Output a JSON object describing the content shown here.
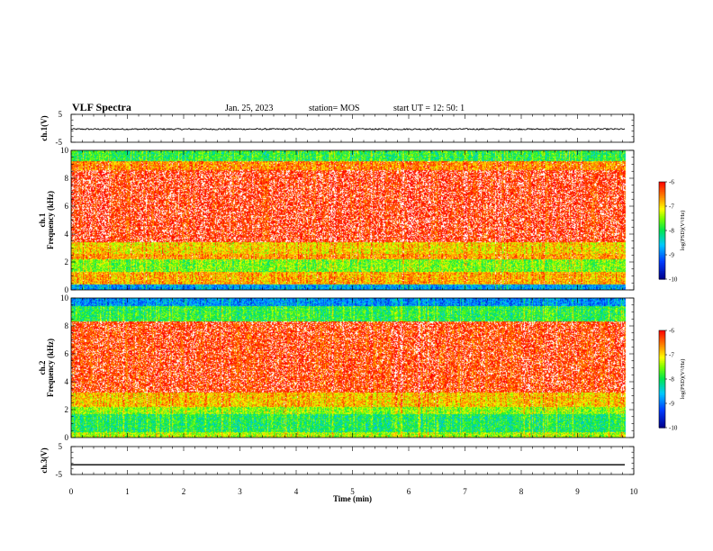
{
  "header": {
    "title": "VLF Spectra",
    "date": "Jan. 25, 2023",
    "station": "station= MOS",
    "start": "start  UT =   12: 50: 1"
  },
  "chart_data": [
    {
      "type": "line",
      "ylabel": "ch.1(V)",
      "ylim": [
        -5,
        5
      ],
      "yticks": [
        "5",
        "-5"
      ],
      "xlim": [
        0,
        10
      ],
      "trace_level": -0.3,
      "trace_noise": 0.25,
      "trace_end": 9.85
    },
    {
      "type": "heatmap",
      "ylabel": "ch.1",
      "ylabel2": "Frequency (kHz)",
      "ylim": [
        0,
        10
      ],
      "yticks": [
        "0",
        "2",
        "4",
        "6",
        "8",
        "10"
      ],
      "xlim": [
        0,
        10
      ],
      "data_end": 9.85,
      "colorbar": {
        "label": "log(PSD)(V²/Hz)",
        "range": [
          -10,
          -6
        ],
        "ticks": [
          "-6",
          "-7",
          "-8",
          "-9",
          "-10"
        ]
      },
      "bands_khz": [
        {
          "from": 9.2,
          "to": 10.0,
          "level": -7.9
        },
        {
          "from": 8.6,
          "to": 9.2,
          "level": -6.6
        },
        {
          "from": 3.4,
          "to": 8.6,
          "level": -6.1
        },
        {
          "from": 2.6,
          "to": 3.4,
          "level": -7.0
        },
        {
          "from": 2.2,
          "to": 2.6,
          "level": -6.7
        },
        {
          "from": 1.3,
          "to": 2.2,
          "level": -7.6
        },
        {
          "from": 0.4,
          "to": 1.3,
          "level": -6.8
        },
        {
          "from": 0.0,
          "to": 0.4,
          "level": -8.8
        }
      ]
    },
    {
      "type": "heatmap",
      "ylabel": "ch.2",
      "ylabel2": "Frequency (kHz)",
      "ylim": [
        0,
        10
      ],
      "yticks": [
        "0",
        "2",
        "4",
        "6",
        "8",
        "10"
      ],
      "xlim": [
        0,
        10
      ],
      "data_end": 9.85,
      "colorbar": {
        "label": "log(PSD)(V²/Hz)",
        "range": [
          -10,
          -6
        ],
        "ticks": [
          "-6",
          "-7",
          "-8",
          "-9",
          "-10"
        ]
      },
      "bands_khz": [
        {
          "from": 9.4,
          "to": 10.0,
          "level": -8.9
        },
        {
          "from": 8.3,
          "to": 9.4,
          "level": -7.9
        },
        {
          "from": 3.2,
          "to": 8.3,
          "level": -6.2
        },
        {
          "from": 2.2,
          "to": 3.2,
          "level": -6.9
        },
        {
          "from": 1.7,
          "to": 2.2,
          "level": -7.5
        },
        {
          "from": 0.4,
          "to": 1.7,
          "level": -8.0
        },
        {
          "from": 0.0,
          "to": 0.4,
          "level": -7.4
        }
      ]
    },
    {
      "type": "line",
      "ylabel": "ch.3(V)",
      "ylim": [
        -5,
        5
      ],
      "yticks": [
        "5",
        "-5"
      ],
      "xlim": [
        0,
        10
      ],
      "xlabel": "Time (min)",
      "xticks": [
        "0",
        "1",
        "2",
        "3",
        "4",
        "5",
        "6",
        "7",
        "8",
        "9",
        "10"
      ],
      "trace_level": -1.5,
      "trace_noise": 0.0,
      "trace_end": 9.85
    }
  ]
}
